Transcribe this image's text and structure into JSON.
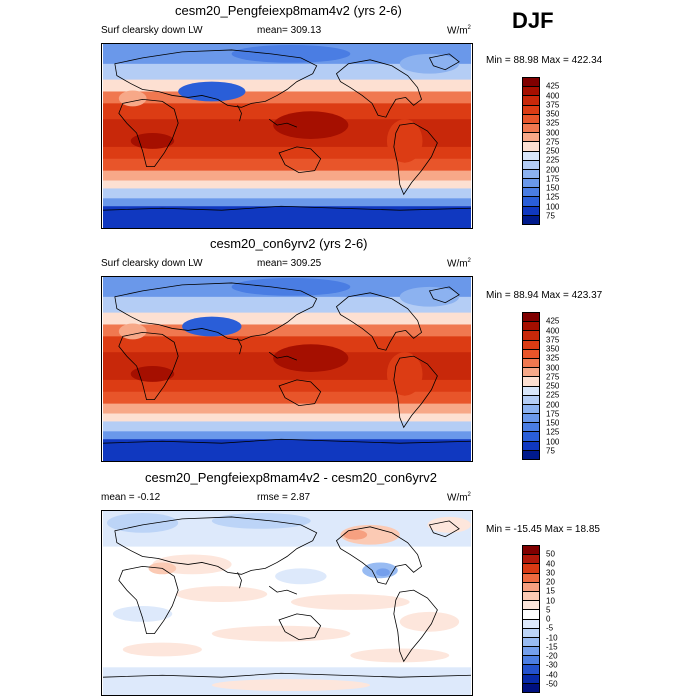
{
  "season": "DJF",
  "panels": [
    {
      "title": "cesm20_Pengfeiexp8mam4v2 (yrs 2-6)",
      "left_label": "Surf clearsky down LW",
      "center_label": "mean= 309.13",
      "units_main": "W/m",
      "units_sup": "2",
      "stats": "Min =  88.98 Max = 422.34",
      "mean_value": 309.13,
      "min_value": 88.98,
      "max_value": 422.34,
      "colorbar_levels": [
        "425",
        "400",
        "375",
        "350",
        "325",
        "300",
        "275",
        "250",
        "225",
        "200",
        "175",
        "150",
        "125",
        "100",
        "75"
      ]
    },
    {
      "title": "cesm20_con6yrv2 (yrs 2-6)",
      "left_label": "Surf clearsky down LW",
      "center_label": "mean= 309.25",
      "units_main": "W/m",
      "units_sup": "2",
      "stats": "Min =  88.94 Max = 423.37",
      "mean_value": 309.25,
      "min_value": 88.94,
      "max_value": 423.37,
      "colorbar_levels": [
        "425",
        "400",
        "375",
        "350",
        "325",
        "300",
        "275",
        "250",
        "225",
        "200",
        "175",
        "150",
        "125",
        "100",
        "75"
      ]
    },
    {
      "title": "cesm20_Pengfeiexp8mam4v2 - cesm20_con6yrv2",
      "left_label": "mean =  -0.12",
      "center_label": "rmse =   2.87",
      "units_main": "W/m",
      "units_sup": "2",
      "stats": "Min = -15.45 Max =  18.85",
      "mean_value": -0.12,
      "rmse_value": 2.87,
      "min_value": -15.45,
      "max_value": 18.85,
      "colorbar_levels": [
        "50",
        "40",
        "30",
        "20",
        "15",
        "10",
        "5",
        "0",
        "-5",
        "-10",
        "-15",
        "-20",
        "-30",
        "-40",
        "-50"
      ]
    }
  ],
  "colors": {
    "field_scale": [
      "#800000",
      "#a50f00",
      "#c8280a",
      "#dc3c14",
      "#e8552a",
      "#f07850",
      "#f7a888",
      "#fde0d2",
      "#d8e6fa",
      "#b4cdf5",
      "#8cb2f0",
      "#6a98ea",
      "#4a7de3",
      "#2a5ed8",
      "#1038c0",
      "#001a8c"
    ],
    "diff_scale": [
      "#800000",
      "#b0180a",
      "#d83a14",
      "#ee6a40",
      "#f6a080",
      "#fbcab4",
      "#fde6dc",
      "#ffffff",
      "#dde9fb",
      "#bcd4f7",
      "#98bbf2",
      "#749fec",
      "#4c7ee2",
      "#2452cc",
      "#082aa8",
      "#001080"
    ],
    "coastline": "#000000"
  }
}
